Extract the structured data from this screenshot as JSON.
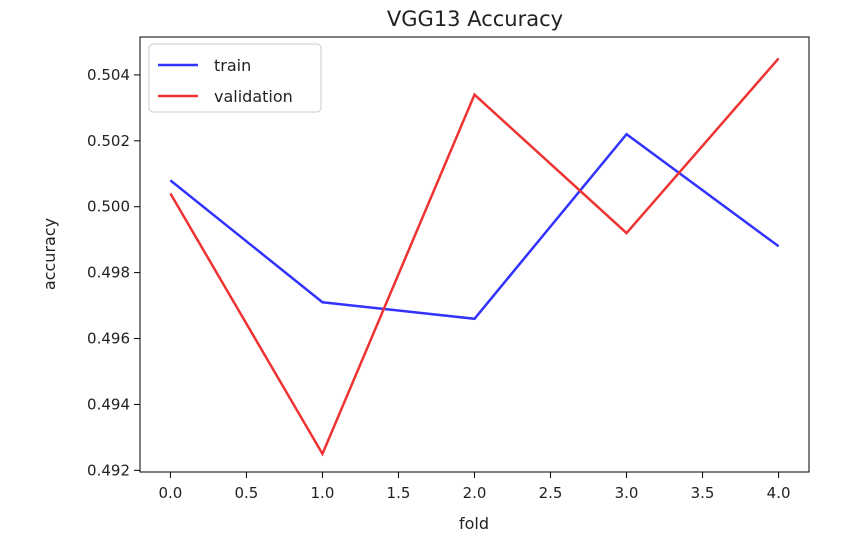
{
  "chart_data": {
    "type": "line",
    "title": "VGG13 Accuracy",
    "xlabel": "fold",
    "ylabel": "accuracy",
    "xlim": [
      -0.2,
      4.2
    ],
    "ylim": [
      0.49195,
      0.50515
    ],
    "x": [
      0,
      1,
      2,
      3,
      4
    ],
    "xticks": [
      0,
      0.5,
      1,
      1.5,
      2,
      2.5,
      3,
      3.5,
      4
    ],
    "xtick_labels": [
      "0.0",
      "0.5",
      "1.0",
      "1.5",
      "2.0",
      "2.5",
      "3.0",
      "3.5",
      "4.0"
    ],
    "yticks": [
      0.492,
      0.494,
      0.496,
      0.498,
      0.5,
      0.502,
      0.504
    ],
    "ytick_labels": [
      "0.492",
      "0.494",
      "0.496",
      "0.498",
      "0.500",
      "0.502",
      "0.504"
    ],
    "grid": false,
    "legend_position": "top-left",
    "series": [
      {
        "name": "train",
        "color": "#3333ff",
        "values": [
          0.5008,
          0.4971,
          0.4966,
          0.5022,
          0.4988
        ]
      },
      {
        "name": "validation",
        "color": "#ee3333",
        "values": [
          0.5004,
          0.4925,
          0.5034,
          0.4992,
          0.5045
        ]
      }
    ]
  }
}
